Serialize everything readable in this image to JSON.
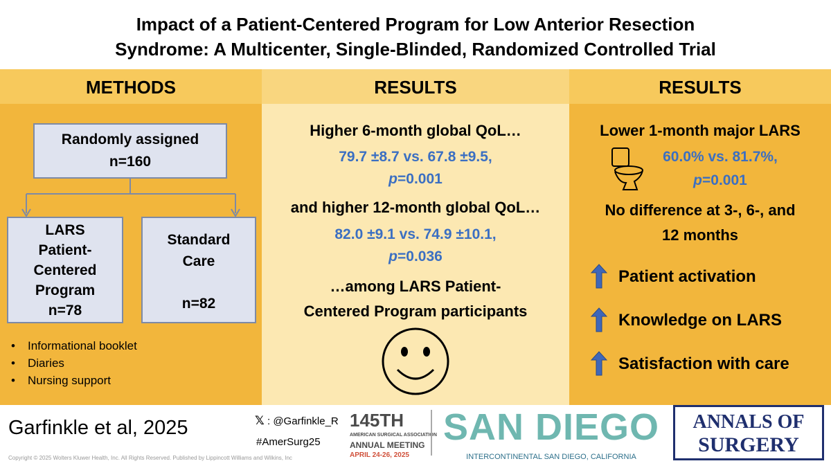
{
  "header": {
    "title_lines": [
      "Impact of a Patient-Centered Program for Low Anterior Resection",
      "Syndrome: A Multicenter, Single-Blinded, Randomized Controlled Trial"
    ]
  },
  "methods": {
    "heading": "METHODS",
    "assigned_box": [
      "Randomly assigned",
      "n=160"
    ],
    "intervention_box": [
      "LARS",
      "Patient-",
      "Centered",
      "Program",
      "n=78"
    ],
    "control_box": [
      "Standard",
      "Care",
      "n=82"
    ],
    "bullets": [
      "Informational booklet",
      "Diaries",
      "Nursing support"
    ]
  },
  "results_qol": {
    "heading": "RESULTS",
    "finding_6m": "Higher 6-month global QoL…",
    "stat_6m": "79.7 ±8.7 vs. 67.8 ±9.5,",
    "p_6m": {
      "symbol": "p",
      "value": "=0.001"
    },
    "finding_12m": "and higher 12-month global QoL…",
    "stat_12m": "82.0 ±9.1 vs. 74.9 ±10.1,",
    "p_12m": {
      "symbol": "p",
      "value": "=0.036"
    },
    "population_lines": [
      "…among LARS Patient-",
      "Centered Program participants"
    ]
  },
  "results_lars": {
    "heading": "RESULTS",
    "finding": "Lower 1-month major LARS",
    "stat": "60.0% vs. 81.7%,",
    "p": {
      "symbol": "p",
      "value": "=0.001"
    },
    "no_difference_lines": [
      "No difference at 3-, 6-, and",
      "12 months"
    ],
    "improvements": [
      "Patient activation",
      "Knowledge on LARS",
      "Satisfaction with care"
    ]
  },
  "footer": {
    "citation": "Garfinkle et al, 2025",
    "x_handle": ": @Garfinkle_R",
    "hashtag": "#AmerSurg25",
    "meeting_number": "145TH",
    "association": "AMERICAN SURGICAL ASSOCIATION",
    "meeting": "ANNUAL MEETING",
    "dates": "APRIL 24-26, 2025",
    "city": "SAN DIEGO",
    "venue": "INTERCONTINENTAL SAN DIEGO, CALIFORNIA",
    "journal_lines": [
      "ANNALS OF",
      "SURGERY"
    ],
    "copyright": "Copyright © 2025 Wolters Kluwer Health, Inc. All Rights Reserved. Published by Lippincott Williams and Wilkins, Inc"
  }
}
